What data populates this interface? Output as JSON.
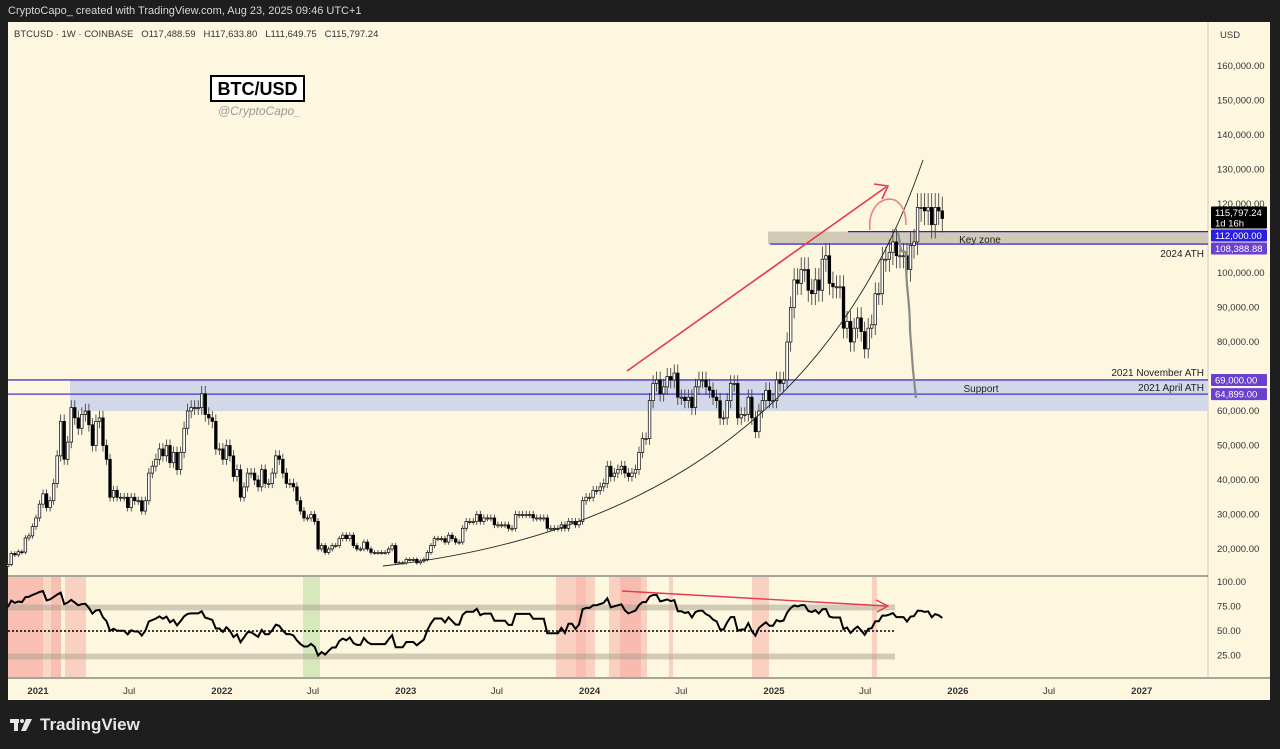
{
  "header": {
    "credit": "CryptoCapo_ created with TradingView.com, Aug 23, 2025 09:46 UTC+1"
  },
  "legend": {
    "symbol": "BTCUSD · 1W · COINBASE",
    "open": "O117,488.59",
    "high": "H117,633.80",
    "low": "L111,649.75",
    "close": "C115,797.24"
  },
  "watermark": {
    "title": "BTC/USD",
    "author": "@CryptoCapo_"
  },
  "brand": {
    "name": "TradingView"
  },
  "colors": {
    "background": "#fdf7e0",
    "up": "#ffffff",
    "down": "#000000",
    "line_purple": "#4a35c8",
    "arrow": "#e8394c",
    "key_zone": "#cfc9b5",
    "support": "#d2d8e8"
  },
  "chart_data": {
    "type": "candlestick",
    "title": "BTC/USD",
    "timeframe": "1W",
    "currency": "USD",
    "ylim": [
      12000,
      172000
    ],
    "start_week": "2020-11-02",
    "closes_k": [
      15.5,
      18.7,
      18.3,
      19.2,
      19.1,
      23.2,
      23.8,
      26.5,
      29,
      33,
      36,
      32,
      34,
      39,
      47,
      57,
      46,
      51,
      61,
      58,
      55,
      59,
      60,
      56,
      50,
      57,
      58,
      50,
      46,
      35,
      37,
      35,
      35,
      35,
      32,
      35,
      34,
      34,
      31,
      34,
      42,
      44,
      46,
      49,
      47,
      50,
      45,
      48,
      43,
      48,
      55,
      60,
      61,
      61,
      61,
      65,
      59,
      58,
      57,
      49,
      49,
      46,
      50,
      47,
      41,
      43,
      35,
      38,
      42,
      42,
      40,
      38,
      43,
      39,
      39,
      42,
      47,
      46,
      42,
      39,
      39,
      38,
      34,
      31,
      29,
      29,
      30,
      28,
      20,
      21,
      19,
      20,
      21,
      21,
      23,
      24,
      23,
      24,
      21,
      20,
      20,
      22,
      20,
      19,
      19,
      19,
      19,
      19,
      20,
      21,
      16,
      16,
      16,
      17,
      17,
      17,
      16,
      16.5,
      17,
      19,
      21,
      23,
      23,
      23,
      22,
      24,
      23,
      22,
      22,
      26,
      28,
      28,
      28,
      30,
      28,
      29,
      29,
      29,
      27,
      27,
      27,
      27,
      26,
      26,
      30,
      30,
      30,
      30,
      30,
      29,
      29,
      29,
      29,
      26,
      26,
      26,
      26,
      27,
      26,
      28,
      28,
      27,
      28,
      34,
      35,
      35,
      37,
      37,
      38,
      39,
      44,
      41,
      42,
      43,
      44,
      42,
      41,
      42,
      43,
      48,
      52,
      52,
      63,
      68,
      69,
      65,
      67,
      70,
      69,
      71,
      64,
      64,
      63,
      64,
      61,
      67,
      69,
      69,
      67,
      66,
      64,
      63,
      58,
      58,
      63,
      68,
      68,
      58,
      59,
      59,
      64,
      58,
      54,
      60,
      63,
      66,
      63,
      63,
      69,
      68,
      69,
      80,
      90,
      98,
      97,
      101,
      101,
      95,
      94,
      98,
      95,
      104,
      105,
      97,
      96,
      96,
      96,
      84,
      86,
      80,
      84,
      87,
      83,
      78,
      84,
      85,
      94,
      94,
      104,
      104,
      106,
      109,
      105,
      105,
      105,
      101,
      108,
      109,
      119,
      119,
      118,
      119,
      114,
      119,
      118,
      115.8
    ],
    "rsi_panel": {
      "length": 14,
      "levels": [
        25,
        50,
        75
      ],
      "ylim": [
        0,
        100
      ]
    },
    "y_ticks": [
      "160,000.00",
      "150,000.00",
      "140,000.00",
      "130,000.00",
      "120,000.00",
      "100,000.00",
      "90,000.00",
      "80,000.00",
      "60,000.00",
      "50,000.00",
      "40,000.00",
      "30,000.00",
      "20,000.00"
    ],
    "y_tick_values": [
      160000,
      150000,
      140000,
      130000,
      120000,
      100000,
      90000,
      80000,
      60000,
      50000,
      40000,
      30000,
      20000
    ],
    "rsi_ticks": [
      "100.00",
      "75.00",
      "50.00",
      "25.00"
    ],
    "rsi_tick_values": [
      100,
      75,
      50,
      25
    ],
    "x_ticks": [
      {
        "label": "2021",
        "date": "2021-01-01",
        "bold": true
      },
      {
        "label": "Jul",
        "date": "2021-07-01"
      },
      {
        "label": "2022",
        "date": "2022-01-01",
        "bold": true
      },
      {
        "label": "Jul",
        "date": "2022-07-01"
      },
      {
        "label": "2023",
        "date": "2023-01-01",
        "bold": true
      },
      {
        "label": "Jul",
        "date": "2023-07-01"
      },
      {
        "label": "2024",
        "date": "2024-01-01",
        "bold": true
      },
      {
        "label": "Jul",
        "date": "2024-07-01"
      },
      {
        "label": "2025",
        "date": "2025-01-01",
        "bold": true
      },
      {
        "label": "Jul",
        "date": "2025-07-01"
      },
      {
        "label": "2026",
        "date": "2026-01-01",
        "bold": true
      },
      {
        "label": "Jul",
        "date": "2026-07-01"
      },
      {
        "label": "2027",
        "date": "2027-01-01",
        "bold": true
      }
    ],
    "axis_unit_label": "USD",
    "price_tags": [
      {
        "value": 115797.24,
        "label": "115,797.24",
        "sub": "1d 16h",
        "color": "#000000"
      },
      {
        "value": 112000,
        "label": "112,000.00",
        "color": "#2a1ee0"
      },
      {
        "value": 108388.88,
        "label": "108,388.88",
        "color": "#6a40d0"
      },
      {
        "value": 69000,
        "label": "69,000.00",
        "color": "#6a40d0"
      },
      {
        "value": 64899,
        "label": "64,899.00",
        "color": "#6a40d0"
      }
    ],
    "annotations": {
      "key_zone": {
        "label": "Key zone",
        "from": 108388.88,
        "to": 112000
      },
      "support": {
        "label": "Support",
        "from": 64899,
        "to": 69000,
        "extended_low": 60000
      },
      "ath_2024": "2024 ATH",
      "ath_2021_nov": "2021 November ATH",
      "ath_2021_apr": "2021 April ATH"
    }
  }
}
